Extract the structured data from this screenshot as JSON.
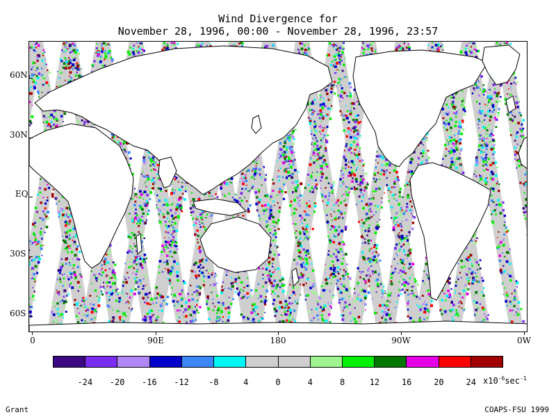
{
  "title": {
    "line1": "Wind Divergence for",
    "line2": "November 28, 1996, 00:00 - November 28, 1996, 23:57"
  },
  "axes": {
    "y_labels": [
      "60N",
      "30N",
      "EQ",
      "30S",
      "60S"
    ],
    "x_labels": [
      "0",
      "90E",
      "180",
      "90W",
      "0W"
    ]
  },
  "legend": {
    "colors": [
      "#3b0a83",
      "#7a2cf0",
      "#b088f5",
      "#0000c8",
      "#3c88f7",
      "#00f5f5",
      "#cfcfcf",
      "#cfcfcf",
      "#9ff592",
      "#00f000",
      "#007800",
      "#e600e6",
      "#ff0000",
      "#a00000"
    ],
    "labels": [
      "-24",
      "-20",
      "-16",
      "-12",
      "-8",
      "4",
      "0",
      "4",
      "8",
      "12",
      "16",
      "20",
      "24"
    ],
    "units_prefix": "x10",
    "units_exp1": "-6",
    "units_mid": "sec",
    "units_exp2": "-1"
  },
  "footer": {
    "author": "Grant",
    "credit": "COAPS-FSU 1999"
  }
}
